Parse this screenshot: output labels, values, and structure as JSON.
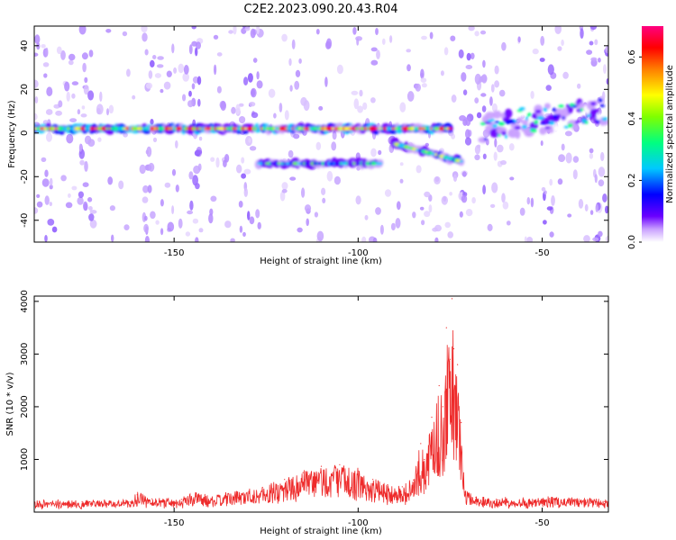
{
  "figure": {
    "title": "C2E2.2023.090.20.43.R04",
    "background": "#ffffff"
  },
  "chart_data": [
    {
      "type": "heatmap",
      "title": "C2E2.2023.090.20.43.R04",
      "xlabel": "Height of straight line (km)",
      "ylabel": "Frequency (Hz)",
      "xlim": [
        -188,
        -32
      ],
      "ylim": [
        -50,
        49
      ],
      "xticks": [
        -150,
        -100,
        -50
      ],
      "xtick_labels": [
        "-150",
        "-100",
        "-50"
      ],
      "yticks": [
        -40,
        -20,
        0,
        20,
        40
      ],
      "ytick_labels": [
        "-40",
        "-20",
        "0",
        "20",
        "40"
      ],
      "colorbar": {
        "label": "Normalized spectral amplitude",
        "range": [
          0.0,
          0.7
        ],
        "ticks": [
          0.0,
          0.2,
          0.4,
          0.6
        ],
        "tick_labels": [
          "0.0",
          "0.2",
          "0.4",
          "0.6"
        ],
        "colors": [
          "#ffffff",
          "#c9a0ff",
          "#6a00ff",
          "#0000ff",
          "#00c8ff",
          "#00ff80",
          "#7fff00",
          "#ffff00",
          "#ff7f00",
          "#ff0000",
          "#ff0080"
        ]
      },
      "features": [
        {
          "name": "",
          "x": [
            -188,
            -75
          ],
          "y": 2,
          "amplitude": 0.55
        },
        {
          "name": "",
          "x": [
            -127,
            -94
          ],
          "y": -14,
          "amplitude": 0.35
        },
        {
          "name": "",
          "x": [
            -90,
            -72
          ],
          "y": [
            -5,
            -13
          ],
          "amplitude": 0.4
        },
        {
          "name": "",
          "x": [
            -66,
            -33
          ],
          "y": [
            3,
            10
          ],
          "amplitude": 0.3
        }
      ],
      "grid": false
    },
    {
      "type": "line",
      "xlabel": "Height of straight line (km)",
      "ylabel": "SNR (10 * v/v)",
      "xlim": [
        -188,
        -32
      ],
      "ylim": [
        0,
        4100
      ],
      "xticks": [
        -150,
        -100,
        -50
      ],
      "xtick_labels": [
        "-150",
        "-100",
        "-50"
      ],
      "yticks": [
        1000,
        2000,
        3000,
        4000
      ],
      "ytick_labels": [
        "1000",
        "2000",
        "3000",
        "4000"
      ],
      "series": [
        {
          "color": "#ee2a2a",
          "x": [
            -188,
            -175,
            -162,
            -160,
            -156,
            -148,
            -144,
            -140,
            -133,
            -126,
            -120,
            -115,
            -110,
            -105,
            -100,
            -96,
            -92,
            -88,
            -85,
            -83,
            -82,
            -80,
            -78,
            -77,
            -76,
            -75,
            -74.5,
            -74,
            -73,
            -72,
            -71,
            -68,
            -62,
            -55,
            -48,
            -40,
            -33
          ],
          "values": [
            180,
            200,
            190,
            330,
            250,
            240,
            350,
            260,
            380,
            470,
            620,
            750,
            870,
            900,
            780,
            620,
            520,
            480,
            610,
            1300,
            1000,
            1800,
            2400,
            2000,
            3500,
            2900,
            4050,
            3100,
            2800,
            1700,
            380,
            280,
            230,
            230,
            260,
            240,
            200
          ]
        }
      ],
      "grid": false
    }
  ]
}
